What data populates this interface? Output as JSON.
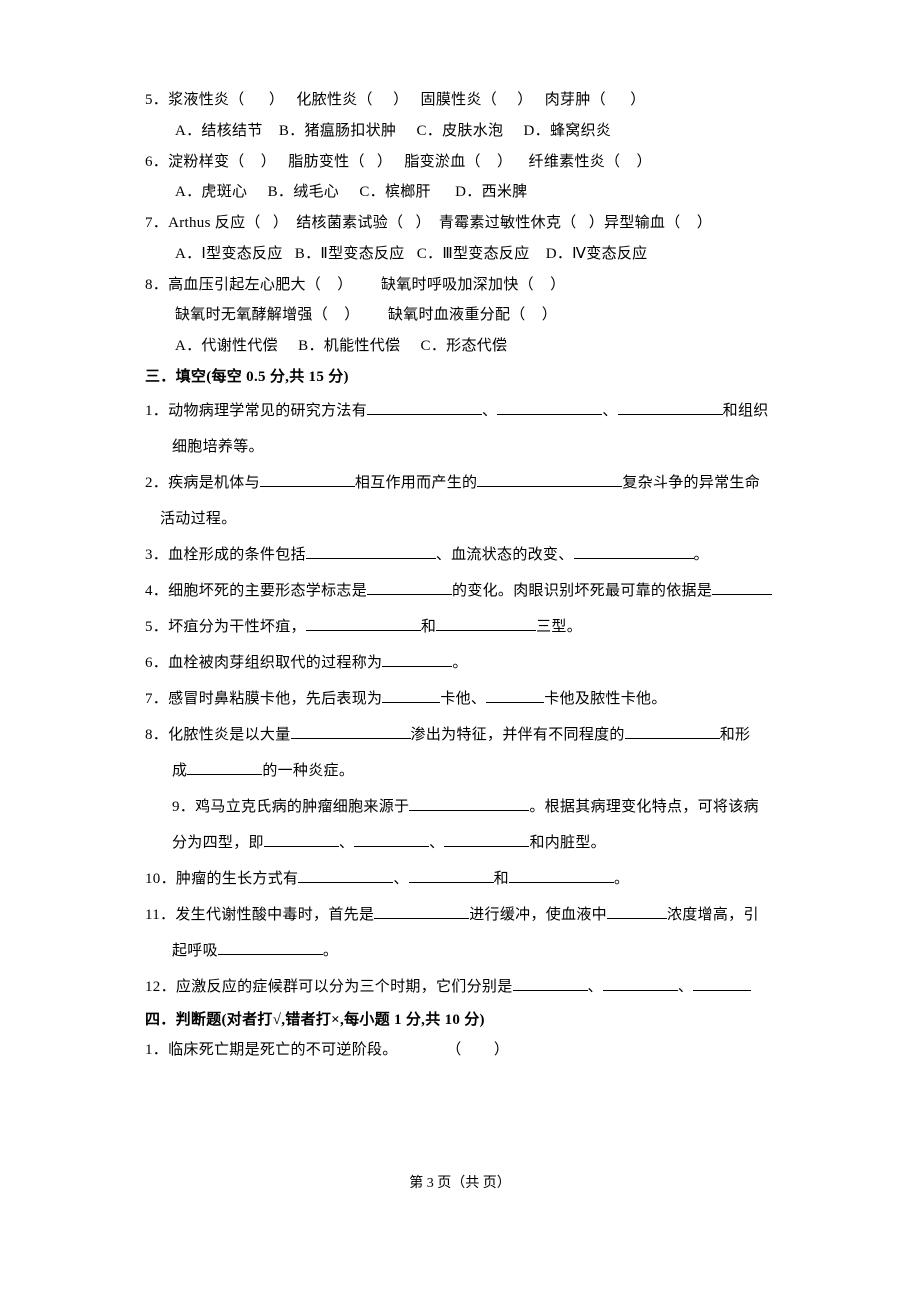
{
  "q5": {
    "text": "5．浆液性炎（      ）   化脓性炎（     ）   固膜性炎（     ）   肉芽肿（      ）",
    "opts": "A．结核结节    B．猪瘟肠扣状肿     C．皮肤水泡     D．蜂窝织炎"
  },
  "q6": {
    "text": "6．淀粉样变（    ）   脂肪变性（   ）   脂变淤血（    ）    纤维素性炎（    ）",
    "opts": "A．虎斑心     B．绒毛心     C．槟榔肝      D．西米脾"
  },
  "q7": {
    "text": "7．Arthus 反应（   ）  结核菌素试验（   ）  青霉素过敏性休克（   ）异型输血（    ）",
    "opts": "A．Ⅰ型变态反应   B．Ⅱ型变态反应   C．Ⅲ型变态反应    D．Ⅳ变态反应"
  },
  "q8": {
    "l1": "8．高血压引起左心肥大（    ）       缺氧时呼吸加深加快（    ）",
    "l2": "缺氧时无氧酵解增强（    ）       缺氧时血液重分配（    ）",
    "opts": "A．代谢性代偿     B．机能性代偿     C．形态代偿"
  },
  "s3_title": "三．填空(每空 0.5 分,共 15 分)",
  "f1_a": "1．动物病理学常见的研究方法有",
  "f1_b": "和组织",
  "f1_c": "细胞培养等。",
  "f2_a": "2．疾病是机体与",
  "f2_b": "相互作用而产生的",
  "f2_c": "复杂斗争的异常生命",
  "f2_d": "活动过程。",
  "f3_a": "3．血栓形成的条件包括",
  "f3_b": "、血流状态的改变、",
  "f4_a": "4．细胞坏死的主要形态学标志是",
  "f4_b": "的变化。肉眼识别坏死最可靠的依据是",
  "f5_a": "5．坏疽分为干性坏疽，",
  "f5_b": "和",
  "f5_c": "三型。",
  "f6_a": "6．血栓被肉芽组织取代的过程称为",
  "f7_a": "7．感冒时鼻粘膜卡他，先后表现为",
  "f7_b": "卡他、",
  "f7_c": "卡他及脓性卡他。",
  "f8_a": "8．化脓性炎是以大量",
  "f8_b": "渗出为特征，并伴有不同程度的",
  "f8_c": "和形",
  "f8_d": "成",
  "f8_e": "的一种炎症。",
  "f9_a": "9．鸡马立克氏病的肿瘤细胞来源于",
  "f9_b": "。根据其病理变化特点，可将该病",
  "f9_c": "分为四型，即",
  "f9_d": "和内脏型。",
  "f10_a": "10．肿瘤的生长方式有",
  "f10_b": "和",
  "f11_a": "11．发生代谢性酸中毒时，首先是",
  "f11_b": "进行缓冲，使血液中",
  "f11_c": "浓度增高，引",
  "f11_d": "起呼吸",
  "f12_a": "12．应激反应的症候群可以分为三个时期，它们分别是",
  "s4_title": "四．判断题(对者打√,错者打×,每小题 1 分,共 10 分)",
  "j1": "1．临床死亡期是死亡的不可逆阶段。            （        ）",
  "footer": "第 3 页（共    页）",
  "blanks": {
    "w95": 95,
    "w105": 105,
    "w115": 115,
    "w145": 145,
    "w75": 75,
    "w58": 58,
    "w70": 70,
    "w130": 130,
    "w85": 85,
    "w60": 60,
    "w100": 100,
    "w120": 120
  }
}
